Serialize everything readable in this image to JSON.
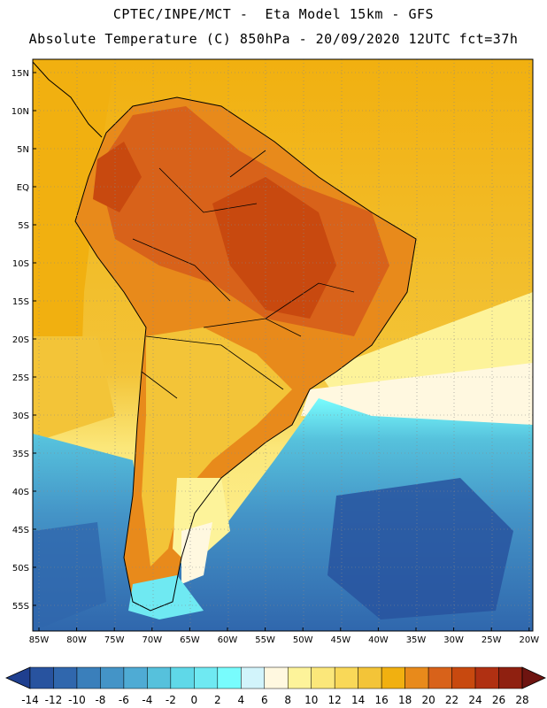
{
  "header": {
    "line1": "CPTEC/INPE/MCT -  Eta Model 15km - GFS",
    "line2": "Absolute Temperature (C) 850hPa - 20/09/2020 12UTC fct=37h"
  },
  "map": {
    "lat_labels": [
      "15N",
      "10N",
      "5N",
      "EQ",
      "5S",
      "10S",
      "15S",
      "20S",
      "25S",
      "30S",
      "35S",
      "40S",
      "45S",
      "50S",
      "55S"
    ],
    "lon_labels": [
      "85W",
      "80W",
      "75W",
      "70W",
      "65W",
      "60W",
      "55W",
      "50W",
      "45W",
      "40W",
      "35W",
      "30W",
      "25W",
      "20W"
    ],
    "colors": {
      "ocean_warm": "#f1b010",
      "land_hot": "#d8621a",
      "land_very_hot": "#c8490f",
      "cold_ocean": "#3a8cc8",
      "coastline": "#000000"
    }
  },
  "colorbar": {
    "labels": [
      "-14",
      "-12",
      "-10",
      "-8",
      "-6",
      "-4",
      "-2",
      "0",
      "2",
      "4",
      "6",
      "8",
      "10",
      "12",
      "14",
      "16",
      "18",
      "20",
      "22",
      "24",
      "26",
      "28"
    ],
    "colors": [
      "#1f3f8f",
      "#28539f",
      "#3067ad",
      "#3a7fbb",
      "#4494c7",
      "#4fabd4",
      "#56c1dc",
      "#5fd8e8",
      "#6fe9f2",
      "#78fcfd",
      "#d2f4fb",
      "#fff8e0",
      "#fdf39a",
      "#fbe77a",
      "#f9d858",
      "#f3c438",
      "#f1b010",
      "#e88a1b",
      "#d8621a",
      "#c8490f",
      "#b03012",
      "#8f2010",
      "#6e1410"
    ]
  }
}
